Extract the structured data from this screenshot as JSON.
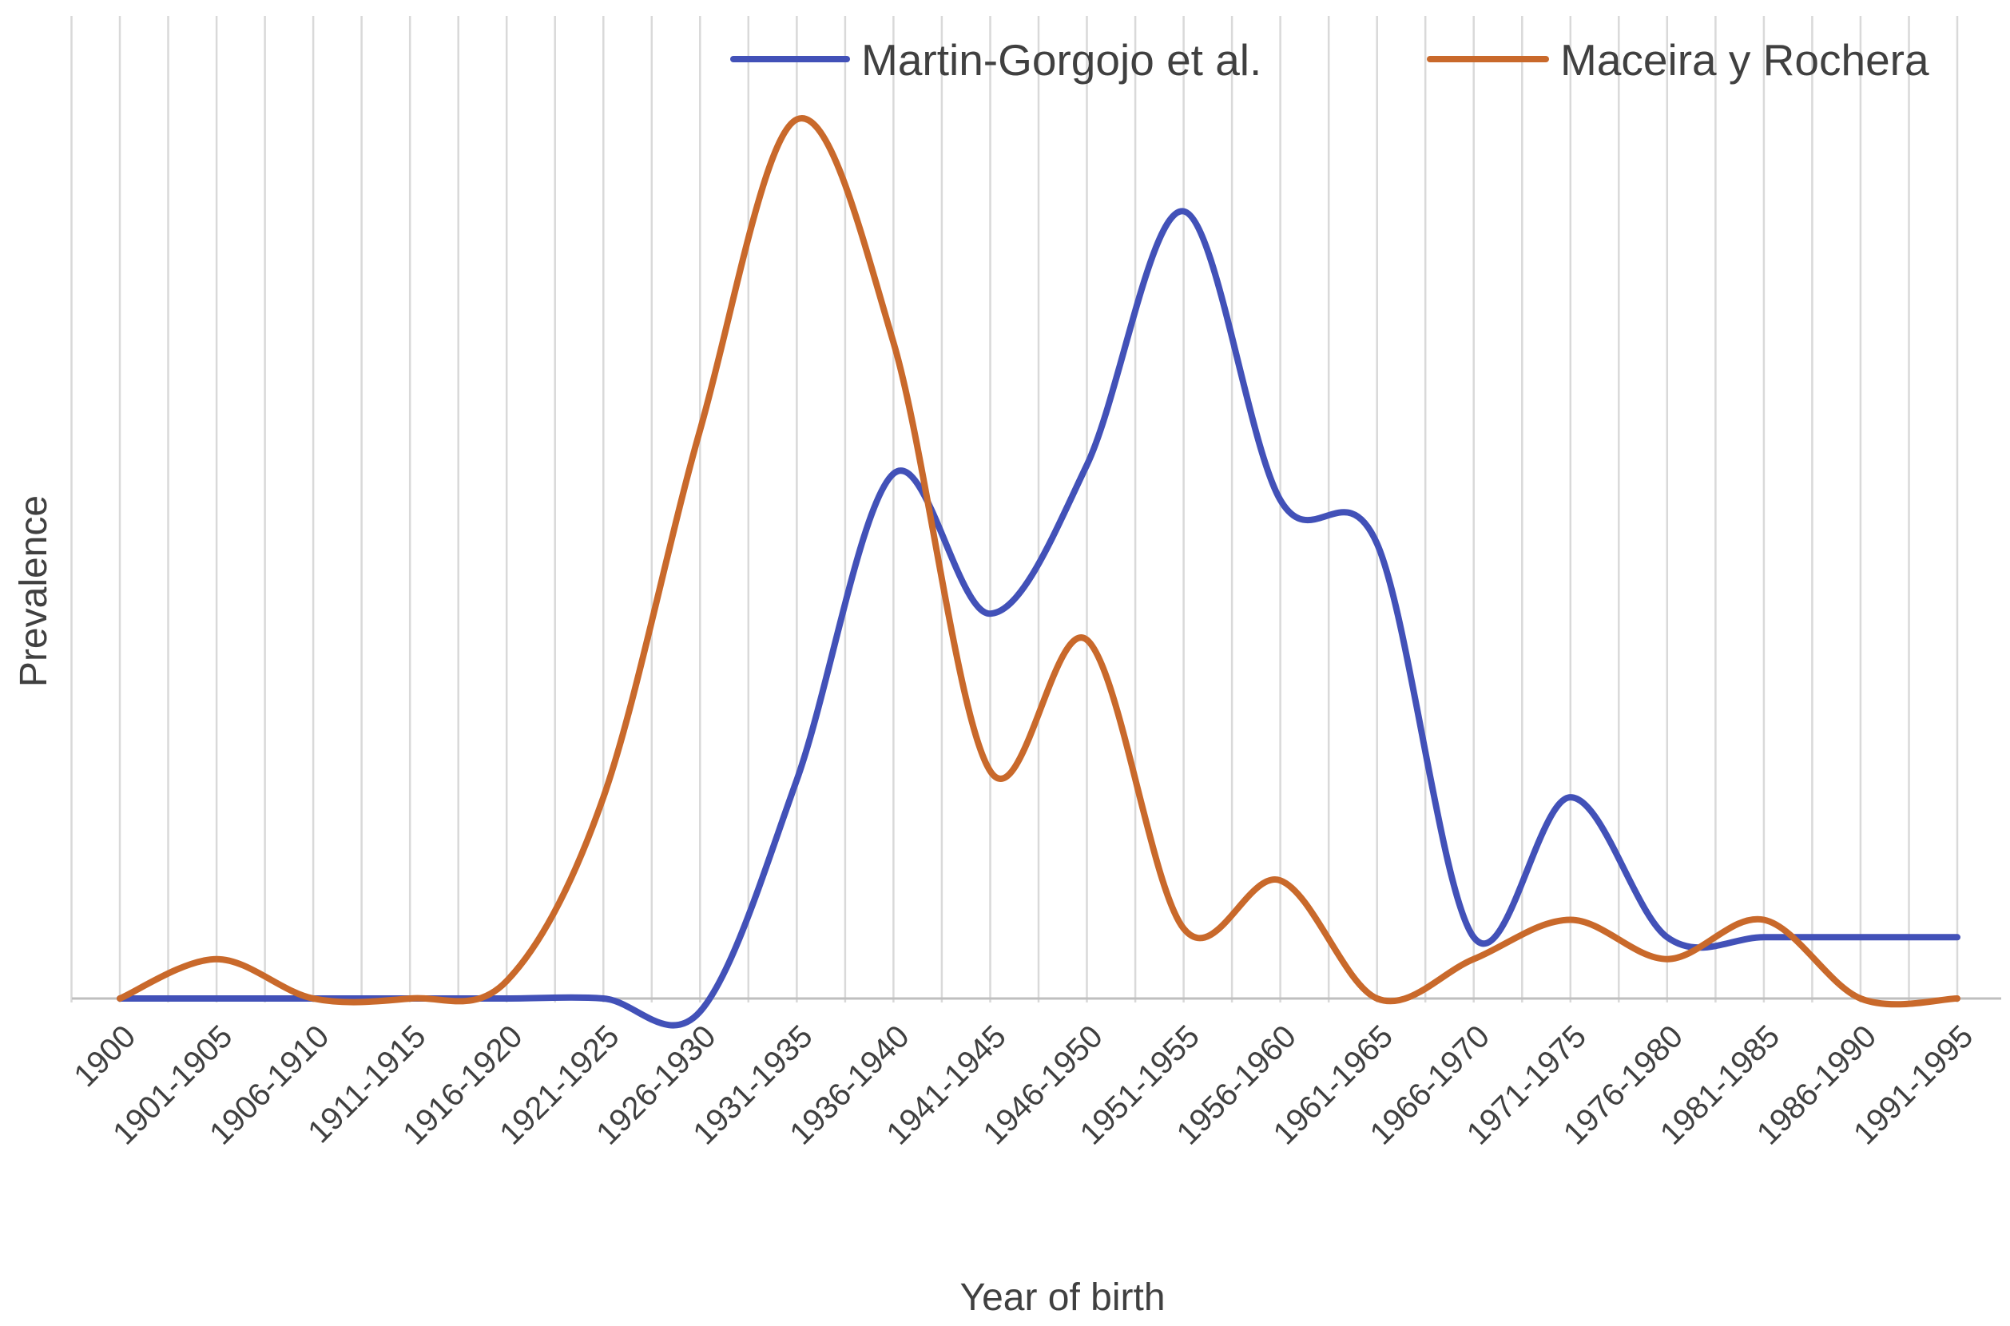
{
  "chart_data": {
    "type": "line",
    "title": "",
    "xlabel": "Year of birth",
    "ylabel": "Prevalence",
    "categories": [
      "1900",
      "1901-1905",
      "1906-1910",
      "1911-1915",
      "1916-1920",
      "1921-1925",
      "1926-1930",
      "1931-1935",
      "1936-1940",
      "1941-1945",
      "1946-1950",
      "1951-1955",
      "1956-1960",
      "1961-1965",
      "1966-1970",
      "1971-1975",
      "1976-1980",
      "1981-1985",
      "1986-1990",
      "1991-1995"
    ],
    "ylim": [
      -0.5,
      10.5
    ],
    "y_tick_labels_shown": false,
    "grid": {
      "vertical": true,
      "horizontal": false
    },
    "smoothed": true,
    "legend": {
      "position": "top-right"
    },
    "series": [
      {
        "name": "Martin-Gorgojo et al.",
        "color": "#4251b8",
        "values": [
          0,
          0,
          0,
          0,
          0,
          0,
          -0.15,
          2.5,
          6.0,
          4.4,
          6.1,
          9.0,
          5.7,
          5.2,
          0.7,
          2.3,
          0.7,
          0.7,
          0.7,
          0.7
        ]
      },
      {
        "name": "Maceira y Rochera",
        "color": "#c9692b",
        "values": [
          0,
          0.45,
          0,
          0,
          0.2,
          2.3,
          6.5,
          10.05,
          7.5,
          2.6,
          4.1,
          0.8,
          1.35,
          0,
          0.45,
          0.9,
          0.45,
          0.9,
          0,
          0
        ]
      }
    ]
  }
}
